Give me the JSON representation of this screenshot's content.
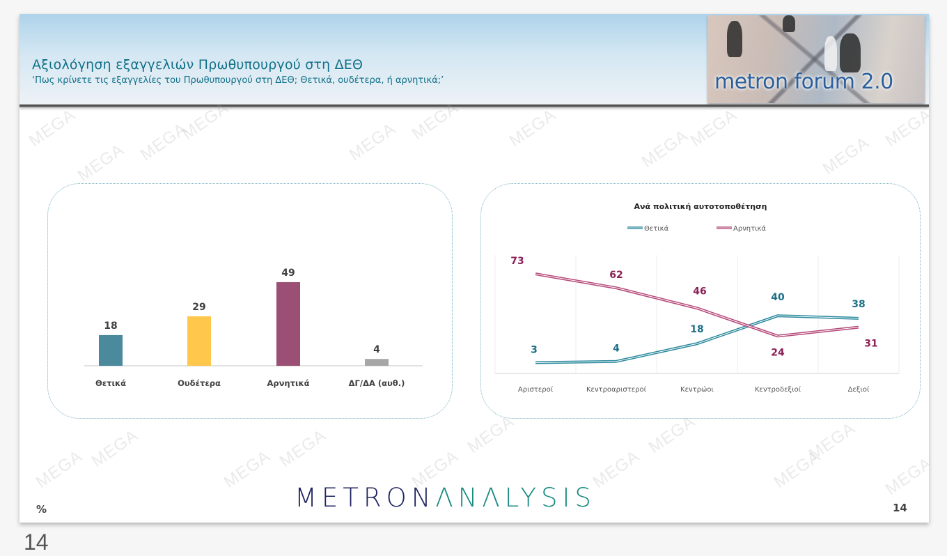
{
  "header": {
    "title": "Αξιολόγηση εξαγγελιών Πρωθυπουργού στη ΔΕΘ",
    "subtitle": "‘Πως κρίνετε τις εξαγγελίες του Πρωθυπουργού στη ΔΕΘ; Θετικά, ουδέτερα, ή αρνητικά;’",
    "logo_text": "metron forum 2.0"
  },
  "footer": {
    "unit": "%",
    "brand_part1": "METRON",
    "brand_part2": "ΛNΛLYSIS",
    "page_number": "14",
    "outer_page_number": "14"
  },
  "watermark_text": "MEGA",
  "colors": {
    "positive": "#4a8a9c",
    "neutral": "#ffc84d",
    "negative": "#9c4f74",
    "no_answer": "#a6a6a6",
    "line_positive": "#2d8a9e",
    "line_negative": "#b5497a",
    "label_positive": "#1d6f86",
    "label_negative": "#8a1f55",
    "title_blue": "#0e6f87"
  },
  "chart_data": [
    {
      "type": "bar",
      "title": "",
      "categories": [
        "Θετικά",
        "Ουδέτερα",
        "Αρνητικά",
        "ΔΓ/ΔΑ (αυθ.)"
      ],
      "values": [
        18,
        29,
        49,
        4
      ],
      "value_labels": [
        "18",
        "29",
        "49",
        "4"
      ],
      "colors": [
        "#4a8a9c",
        "#ffc84d",
        "#9c4f74",
        "#a6a6a6"
      ],
      "xlabel": "",
      "ylabel": "%",
      "ylim": [
        0,
        55
      ],
      "grid": false,
      "legend": "none"
    },
    {
      "type": "line",
      "title": "Ανά πολιτική αυτοτοποθέτηση",
      "categories": [
        "Αριστεροί",
        "Κεντροαριστεροί",
        "Κεντρώοι",
        "Κεντροδεξιοί",
        "Δεξιοί"
      ],
      "series": [
        {
          "name": "Θετικά",
          "values": [
            3,
            4,
            18,
            40,
            38
          ],
          "value_labels": [
            "3",
            "4",
            "18",
            "40",
            "38"
          ],
          "color": "#2d8a9e"
        },
        {
          "name": "Αρνητικά",
          "values": [
            73,
            62,
            46,
            24,
            31
          ],
          "value_labels": [
            "73",
            "62",
            "46",
            "24",
            "31"
          ],
          "color": "#b5497a"
        }
      ],
      "xlabel": "",
      "ylabel": "%",
      "ylim": [
        0,
        80
      ],
      "grid": "vertical",
      "legend": "top"
    }
  ]
}
